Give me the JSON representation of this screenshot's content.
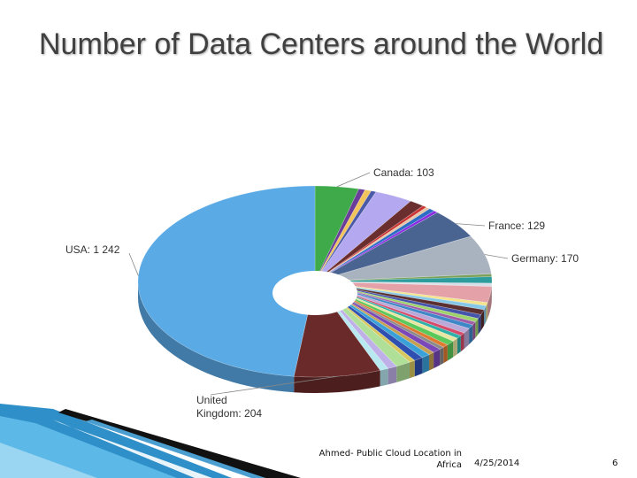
{
  "slide": {
    "title": "Number of Data Centers around the World",
    "footer_source_line1": "Ahmed- Public Cloud Location in",
    "footer_source_line2": "Africa",
    "footer_date": "4/25/2014",
    "footer_page": "6"
  },
  "chart_data": {
    "type": "pie",
    "donut": true,
    "slices": [
      {
        "label": "Canada: 103",
        "value": 103,
        "color": "#3faa4a",
        "labeled": true
      },
      {
        "label": "",
        "value": 15,
        "color": "#6a3d9a",
        "labeled": false
      },
      {
        "label": "",
        "value": 15,
        "color": "#f2c45c",
        "labeled": false
      },
      {
        "label": "",
        "value": 12,
        "color": "#4a5aa8",
        "labeled": false
      },
      {
        "label": "",
        "value": 90,
        "color": "#b4a8f0",
        "labeled": false
      },
      {
        "label": "",
        "value": 35,
        "color": "#6b2e2e",
        "labeled": false
      },
      {
        "label": "",
        "value": 10,
        "color": "#cc3333",
        "labeled": false
      },
      {
        "label": "",
        "value": 10,
        "color": "#e5c7a8",
        "labeled": false
      },
      {
        "label": "",
        "value": 14,
        "color": "#2b6cc4",
        "labeled": false
      },
      {
        "label": "",
        "value": 10,
        "color": "#8a2be2",
        "labeled": false
      },
      {
        "label": "France: 129",
        "value": 129,
        "color": "#4a6492",
        "labeled": true
      },
      {
        "label": "Germany: 170",
        "value": 170,
        "color": "#a9b3bf",
        "labeled": true
      },
      {
        "label": "",
        "value": 12,
        "color": "#7aa05a",
        "labeled": false
      },
      {
        "label": "",
        "value": 28,
        "color": "#2d9c9c",
        "labeled": false
      },
      {
        "label": "",
        "value": 14,
        "color": "#d8dfe8",
        "labeled": false
      },
      {
        "label": "",
        "value": 70,
        "color": "#e4a2a8",
        "labeled": false
      },
      {
        "label": "",
        "value": 14,
        "color": "#f3e38a",
        "labeled": false
      },
      {
        "label": "",
        "value": 18,
        "color": "#86c7e8",
        "labeled": false
      },
      {
        "label": "",
        "value": 22,
        "color": "#5c3030",
        "labeled": false
      },
      {
        "label": "",
        "value": 18,
        "color": "#4455aa",
        "labeled": false
      },
      {
        "label": "",
        "value": 16,
        "color": "#9ed36a",
        "labeled": false
      },
      {
        "label": "",
        "value": 14,
        "color": "#a15ca8",
        "labeled": false
      },
      {
        "label": "",
        "value": 18,
        "color": "#3f88c8",
        "labeled": false
      },
      {
        "label": "",
        "value": 22,
        "color": "#b9a8d8",
        "labeled": false
      },
      {
        "label": "",
        "value": 14,
        "color": "#d64a6a",
        "labeled": false
      },
      {
        "label": "",
        "value": 14,
        "color": "#2fb0a8",
        "labeled": false
      },
      {
        "label": "",
        "value": 16,
        "color": "#e8e6a0",
        "labeled": false
      },
      {
        "label": "",
        "value": 20,
        "color": "#5bc85b",
        "labeled": false
      },
      {
        "label": "",
        "value": 14,
        "color": "#e07a30",
        "labeled": false
      },
      {
        "label": "",
        "value": 12,
        "color": "#8a8a8a",
        "labeled": false
      },
      {
        "label": "",
        "value": 20,
        "color": "#7a48b8",
        "labeled": false
      },
      {
        "label": "",
        "value": 14,
        "color": "#c4a050",
        "labeled": false
      },
      {
        "label": "",
        "value": 20,
        "color": "#3aa0d8",
        "labeled": false
      },
      {
        "label": "",
        "value": 22,
        "color": "#2e4fb0",
        "labeled": false
      },
      {
        "label": "",
        "value": 14,
        "color": "#d8c860",
        "labeled": false
      },
      {
        "label": "",
        "value": 35,
        "color": "#b0e098",
        "labeled": false
      },
      {
        "label": "",
        "value": 22,
        "color": "#c0b0e8",
        "labeled": false
      },
      {
        "label": "",
        "value": 20,
        "color": "#b8e8f0",
        "labeled": false
      },
      {
        "label": "United Kingdom: 204",
        "value": 204,
        "color": "#6a2a2a",
        "labeled": true
      },
      {
        "label": "USA: 1 242",
        "value": 1242,
        "color": "#5aaae6",
        "labeled": true
      }
    ]
  }
}
